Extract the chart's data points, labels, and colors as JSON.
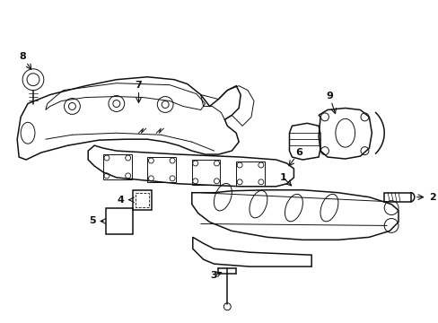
{
  "background_color": "#ffffff",
  "line_color": "#111111",
  "lw_main": 1.1,
  "lw_inner": 0.7,
  "figsize": [
    4.89,
    3.6
  ],
  "dpi": 100
}
